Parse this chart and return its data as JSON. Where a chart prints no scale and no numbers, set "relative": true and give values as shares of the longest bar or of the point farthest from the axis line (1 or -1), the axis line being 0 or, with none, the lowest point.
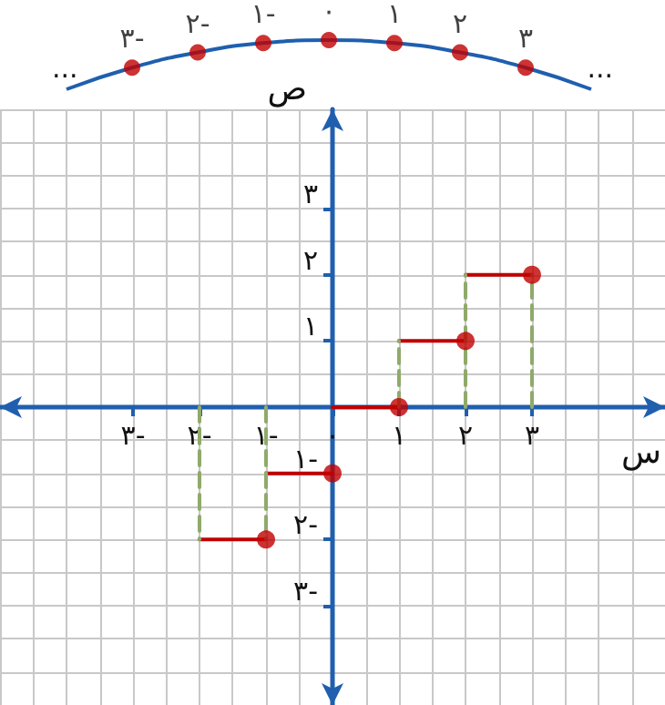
{
  "chart_data": [
    {
      "type": "line",
      "relative": true,
      "categories": [
        null,
        "٣-",
        "٢-",
        "١-",
        "٠",
        "١",
        "٢",
        "٣",
        null
      ],
      "annotations": [
        "...",
        "..."
      ],
      "series": [
        {
          "type": "line",
          "color": "#1f5fae",
          "marker": "none",
          "values": [
            0,
            0.44,
            0.75,
            0.94,
            1,
            0.94,
            0.75,
            0.44,
            0
          ]
        },
        {
          "type": "scatter",
          "color": "#c00000",
          "marker": "circle",
          "values": [
            null,
            0.44,
            0.75,
            0.94,
            1,
            0.94,
            0.75,
            0.44,
            null
          ]
        }
      ]
    },
    {
      "type": "line",
      "xlabel": "س",
      "ylabel": "ص",
      "xlim": [
        -5,
        5
      ],
      "ylim": [
        -4.5,
        4.5
      ],
      "xticks": [
        {
          "value": -3,
          "label": "٣-"
        },
        {
          "value": -2,
          "label": "٢-"
        },
        {
          "value": -1,
          "label": "١-"
        },
        {
          "value": 0,
          "label": "٠"
        },
        {
          "value": 1,
          "label": "١"
        },
        {
          "value": 2,
          "label": "٢"
        },
        {
          "value": 3,
          "label": "٣"
        }
      ],
      "yticks": [
        {
          "value": -3,
          "label": "٣-"
        },
        {
          "value": -2,
          "label": "٢-"
        },
        {
          "value": -1,
          "label": "١-"
        },
        {
          "value": 1,
          "label": "١"
        },
        {
          "value": 2,
          "label": "٢"
        },
        {
          "value": 3,
          "label": "٣"
        }
      ],
      "grid": true,
      "series": [
        {
          "type": "line",
          "color": "#c00000",
          "line_style": "solid",
          "marker": "none",
          "x": [
            -2,
            -1
          ],
          "values": [
            -2,
            -2
          ]
        },
        {
          "type": "line",
          "color": "#c00000",
          "line_style": "solid",
          "marker": "none",
          "x": [
            -1,
            0
          ],
          "values": [
            -1,
            -1
          ]
        },
        {
          "type": "line",
          "color": "#c00000",
          "line_style": "solid",
          "marker": "none",
          "x": [
            0,
            1
          ],
          "values": [
            0,
            0
          ]
        },
        {
          "type": "line",
          "color": "#c00000",
          "line_style": "solid",
          "marker": "none",
          "x": [
            1,
            2
          ],
          "values": [
            1,
            1
          ]
        },
        {
          "type": "line",
          "color": "#c00000",
          "line_style": "solid",
          "marker": "none",
          "x": [
            2,
            3
          ],
          "values": [
            2,
            2
          ]
        },
        {
          "type": "line",
          "color": "#8faa6a",
          "line_style": "dashed",
          "marker": "none",
          "x": [
            -2,
            -2
          ],
          "values": [
            0,
            -2
          ]
        },
        {
          "type": "line",
          "color": "#8faa6a",
          "line_style": "dashed",
          "marker": "none",
          "x": [
            -1,
            -1
          ],
          "values": [
            0,
            -2
          ]
        },
        {
          "type": "line",
          "color": "#8faa6a",
          "line_style": "dashed",
          "marker": "none",
          "x": [
            1,
            1
          ],
          "values": [
            0,
            1
          ]
        },
        {
          "type": "line",
          "color": "#8faa6a",
          "line_style": "dashed",
          "marker": "none",
          "x": [
            2,
            2
          ],
          "values": [
            0,
            2
          ]
        },
        {
          "type": "line",
          "color": "#8faa6a",
          "line_style": "dashed",
          "marker": "none",
          "x": [
            3,
            3
          ],
          "values": [
            0,
            2
          ]
        },
        {
          "type": "scatter",
          "color": "#c00000",
          "marker": "circle",
          "x": [
            -1,
            0,
            1,
            2,
            3
          ],
          "values": [
            -2,
            -1,
            0,
            1,
            2
          ]
        }
      ]
    }
  ]
}
